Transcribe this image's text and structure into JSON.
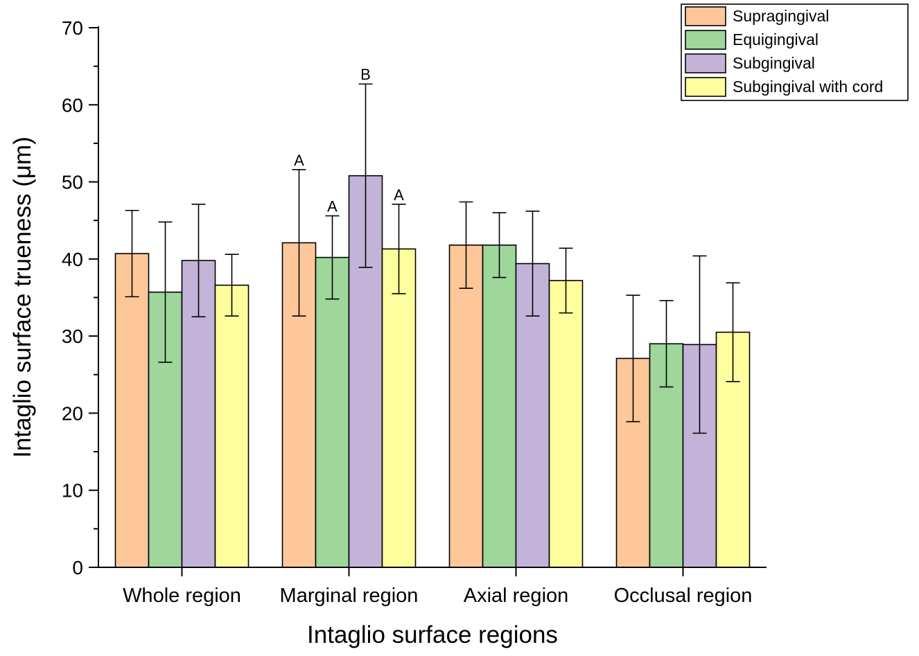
{
  "chart_data": {
    "type": "bar",
    "title": "",
    "xlabel": "Intaglio surface regions",
    "ylabel": "Intaglio surface trueness (μm)",
    "ylim": [
      0,
      70
    ],
    "yticks": [
      0,
      10,
      20,
      30,
      40,
      50,
      60,
      70
    ],
    "grid": false,
    "legend_position": "top-right",
    "categories": [
      "Whole region",
      "Marginal region",
      "Axial region",
      "Occlusal region"
    ],
    "series": [
      {
        "name": "Supragingival",
        "color": "#FDC79A",
        "values": [
          40.7,
          42.1,
          41.8,
          27.1
        ],
        "errors": [
          5.6,
          9.5,
          5.6,
          8.2
        ],
        "labels": [
          "",
          "A",
          "",
          ""
        ]
      },
      {
        "name": "Equigingival",
        "color": "#9ED69B",
        "values": [
          35.7,
          40.2,
          41.8,
          29.0
        ],
        "errors": [
          9.1,
          5.4,
          4.2,
          5.6
        ],
        "labels": [
          "",
          "A",
          "",
          ""
        ]
      },
      {
        "name": "Subgingival",
        "color": "#C3B3D9",
        "values": [
          39.8,
          50.8,
          39.4,
          28.9
        ],
        "errors": [
          7.3,
          11.9,
          6.8,
          11.5
        ],
        "labels": [
          "",
          "B",
          "",
          ""
        ]
      },
      {
        "name": "Subgingival with cord",
        "color": "#FDFE9E",
        "values": [
          36.6,
          41.3,
          37.2,
          30.5
        ],
        "errors": [
          4.0,
          5.8,
          4.2,
          6.4
        ],
        "labels": [
          "",
          "A",
          "",
          ""
        ]
      }
    ]
  }
}
